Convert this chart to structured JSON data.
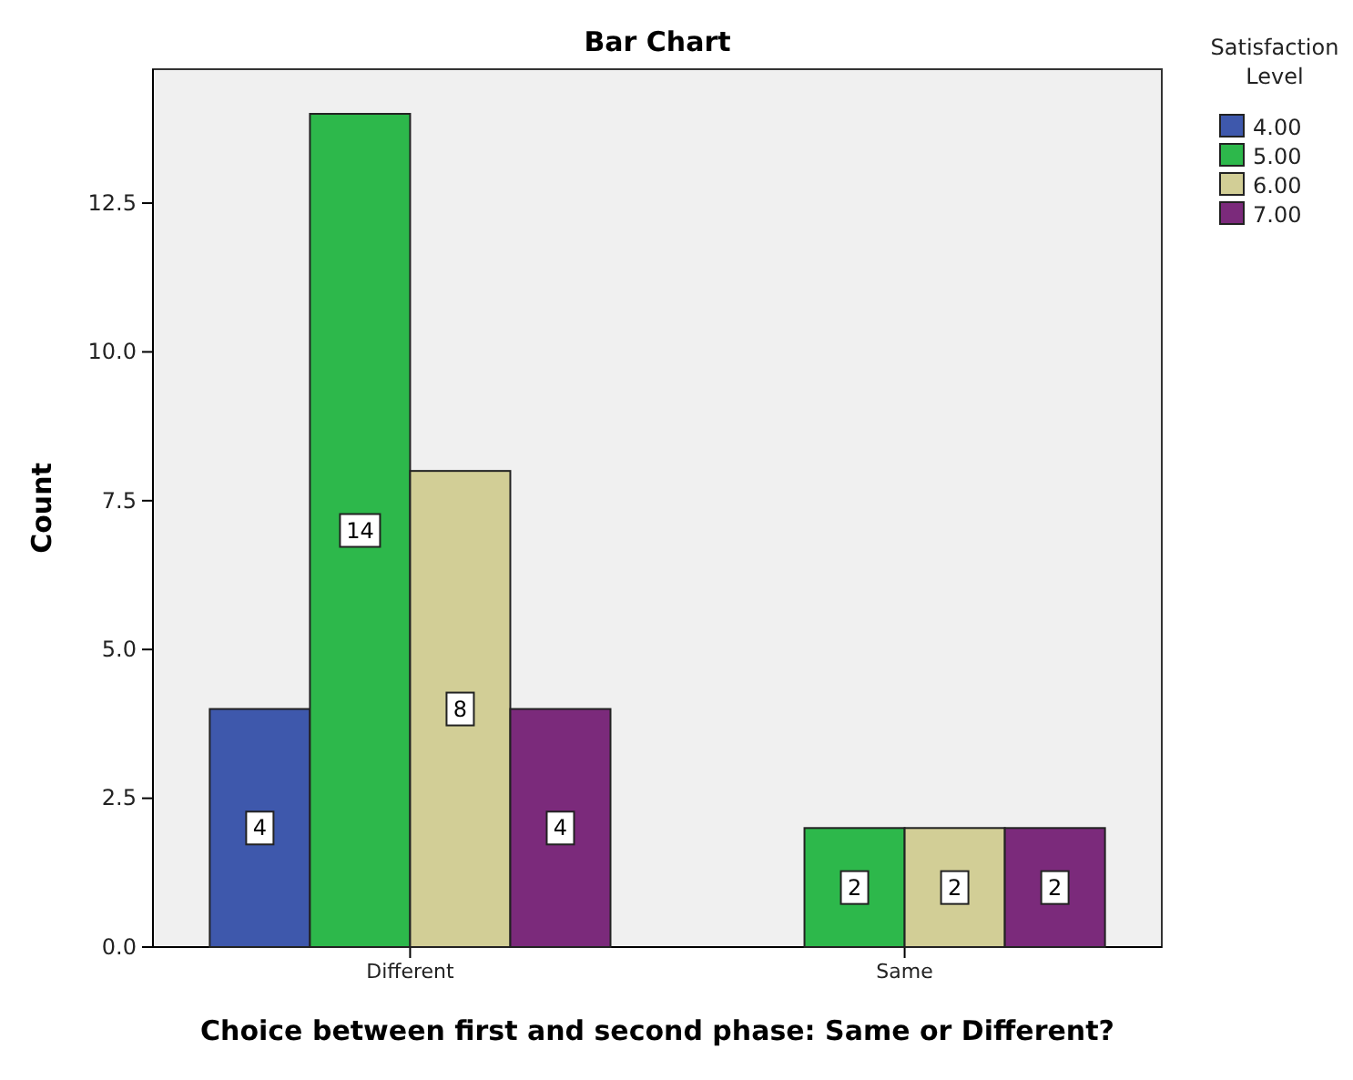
{
  "chart_data": {
    "type": "bar",
    "title": "Bar Chart",
    "xlabel": "Choice between first and second phase: Same or Different?",
    "ylabel": "Count",
    "legend_title": "Satisfaction Level",
    "categories": [
      "Different",
      "Same"
    ],
    "series": [
      {
        "name": "4.00",
        "color": "#3e58ac",
        "values": [
          4,
          null
        ]
      },
      {
        "name": "5.00",
        "color": "#2db84b",
        "values": [
          14,
          2
        ]
      },
      {
        "name": "6.00",
        "color": "#d2ce96",
        "values": [
          8,
          2
        ]
      },
      {
        "name": "7.00",
        "color": "#7b2a7b",
        "values": [
          4,
          2
        ]
      }
    ],
    "ylim": [
      0,
      14.75
    ],
    "yticks": [
      {
        "value": 0,
        "label": "0.0"
      },
      {
        "value": 2.5,
        "label": "2.5"
      },
      {
        "value": 5,
        "label": "5.0"
      },
      {
        "value": 7.5,
        "label": "7.5"
      },
      {
        "value": 10,
        "label": "10.0"
      },
      {
        "value": 12.5,
        "label": "12.5"
      }
    ],
    "data_labels": true,
    "legend": "top right",
    "grid": false
  }
}
